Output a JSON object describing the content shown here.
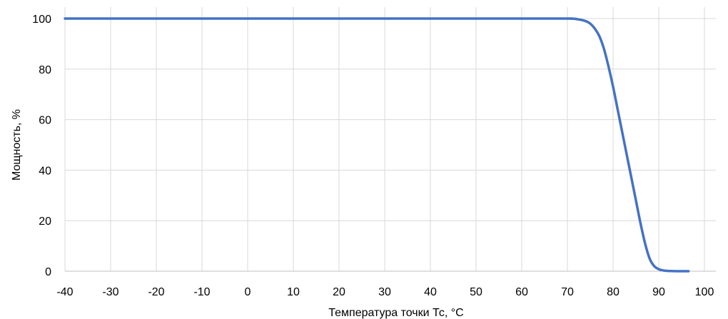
{
  "chart_data": {
    "type": "line",
    "title": "",
    "xlabel": "Температура точки Тс, °С",
    "ylabel": "Мощность, %",
    "xlim": [
      -40,
      100
    ],
    "ylim": [
      0,
      100
    ],
    "x_ticks": [
      -40,
      -30,
      -20,
      -10,
      0,
      10,
      20,
      30,
      40,
      50,
      60,
      70,
      80,
      90,
      100
    ],
    "y_ticks": [
      0,
      20,
      40,
      60,
      80,
      100
    ],
    "grid": {
      "vertical": true,
      "horizontal": true
    },
    "legend": "none",
    "series": [
      {
        "color": "#4472c4",
        "x": [
          -40,
          60,
          70,
          72,
          74,
          75,
          76,
          77,
          78,
          79,
          80,
          81,
          82,
          83,
          84,
          85,
          86,
          87,
          88,
          89,
          90,
          91,
          92,
          93,
          94,
          95,
          96.5
        ],
        "y": [
          100,
          100,
          100,
          99.8,
          99,
          98,
          96,
          93,
          88,
          81,
          73,
          64,
          55,
          46,
          37,
          28,
          19,
          11,
          5,
          2,
          0.8,
          0.3,
          0.1,
          0.05,
          0,
          0,
          0
        ]
      }
    ]
  }
}
